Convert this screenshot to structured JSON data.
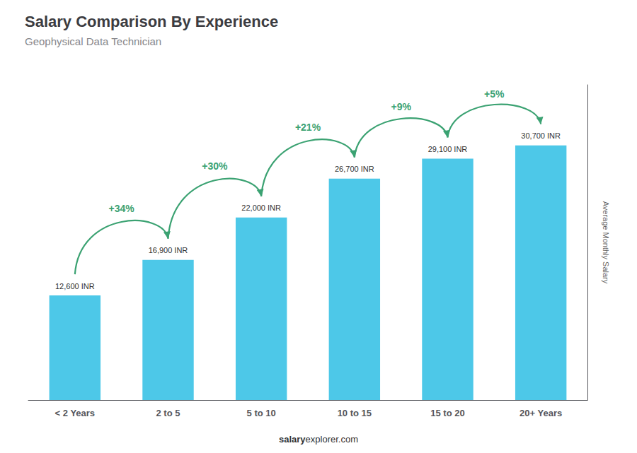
{
  "chart_data": {
    "type": "bar",
    "title": "Salary Comparison By Experience",
    "subtitle": "Geophysical Data Technician",
    "categories": [
      "< 2 Years",
      "2 to 5",
      "5 to 10",
      "10 to 15",
      "15 to 20",
      "20+ Years"
    ],
    "values": [
      12600,
      16900,
      22000,
      26700,
      29100,
      30700
    ],
    "value_labels": [
      "12,600 INR",
      "16,900 INR",
      "22,000 INR",
      "26,700 INR",
      "29,100 INR",
      "30,700 INR"
    ],
    "annotations": [
      "+34%",
      "+30%",
      "+21%",
      "+9%",
      "+5%"
    ],
    "ylabel": "Average Monthly Salary",
    "footer": [
      "salary",
      "explorer.com"
    ],
    "color": "#4dc8e8",
    "ylim": [
      0,
      38000
    ],
    "grid": false,
    "tick_labels": "x"
  }
}
